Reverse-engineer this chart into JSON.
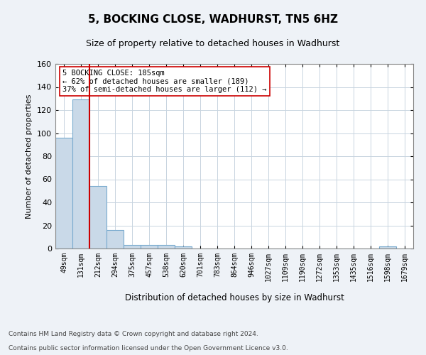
{
  "title": "5, BOCKING CLOSE, WADHURST, TN5 6HZ",
  "subtitle": "Size of property relative to detached houses in Wadhurst",
  "xlabel": "Distribution of detached houses by size in Wadhurst",
  "ylabel": "Number of detached properties",
  "categories": [
    "49sqm",
    "131sqm",
    "212sqm",
    "294sqm",
    "375sqm",
    "457sqm",
    "538sqm",
    "620sqm",
    "701sqm",
    "783sqm",
    "864sqm",
    "946sqm",
    "1027sqm",
    "1109sqm",
    "1190sqm",
    "1272sqm",
    "1353sqm",
    "1435sqm",
    "1516sqm",
    "1598sqm",
    "1679sqm"
  ],
  "values": [
    96,
    129,
    54,
    16,
    3,
    3,
    3,
    2,
    0,
    0,
    0,
    0,
    0,
    0,
    0,
    0,
    0,
    0,
    0,
    2,
    0
  ],
  "bar_color": "#c9d9e8",
  "bar_edge_color": "#7aabcf",
  "property_line_x": 1.5,
  "property_line_color": "#cc0000",
  "ylim": [
    0,
    160
  ],
  "yticks": [
    0,
    20,
    40,
    60,
    80,
    100,
    120,
    140,
    160
  ],
  "annotation_text": "5 BOCKING CLOSE: 185sqm\n← 62% of detached houses are smaller (189)\n37% of semi-detached houses are larger (112) →",
  "annotation_box_color": "#ffffff",
  "annotation_box_edge": "#cc0000",
  "footer_line1": "Contains HM Land Registry data © Crown copyright and database right 2024.",
  "footer_line2": "Contains public sector information licensed under the Open Government Licence v3.0.",
  "background_color": "#eef2f7",
  "plot_bg_color": "#ffffff",
  "grid_color": "#c8d4e0"
}
